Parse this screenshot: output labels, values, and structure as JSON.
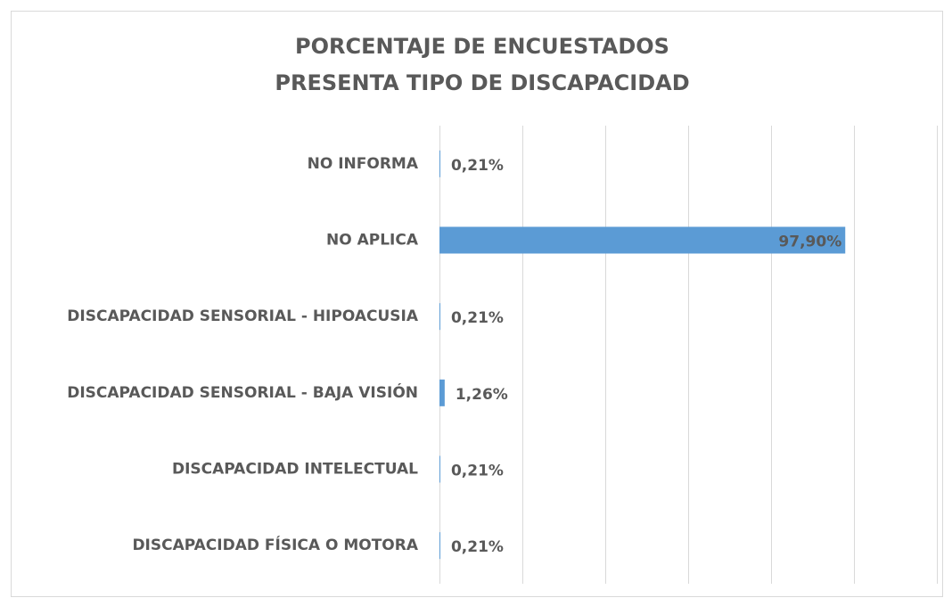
{
  "chart_data": {
    "type": "bar",
    "orientation": "horizontal",
    "title": [
      "PORCENTAJE DE ENCUESTADOS",
      "PRESENTA TIPO DE DISCAPACIDAD"
    ],
    "categories": [
      "NO INFORMA",
      "NO APLICA",
      "DISCAPACIDAD SENSORIAL - HIPOACUSIA",
      "DISCAPACIDAD SENSORIAL - BAJA VISIÓN",
      "DISCAPACIDAD INTELECTUAL",
      "DISCAPACIDAD FÍSICA O MOTORA"
    ],
    "values": [
      0.21,
      97.9,
      0.21,
      1.26,
      0.21,
      0.21
    ],
    "value_labels": [
      "0,21%",
      "97,90%",
      "0,21%",
      "1,26%",
      "0,21%",
      "0,21%"
    ],
    "color": "#5b9bd5",
    "xlim": [
      0,
      120
    ],
    "xticks": [
      0,
      20,
      40,
      60,
      80,
      100,
      120
    ],
    "grid": true
  }
}
